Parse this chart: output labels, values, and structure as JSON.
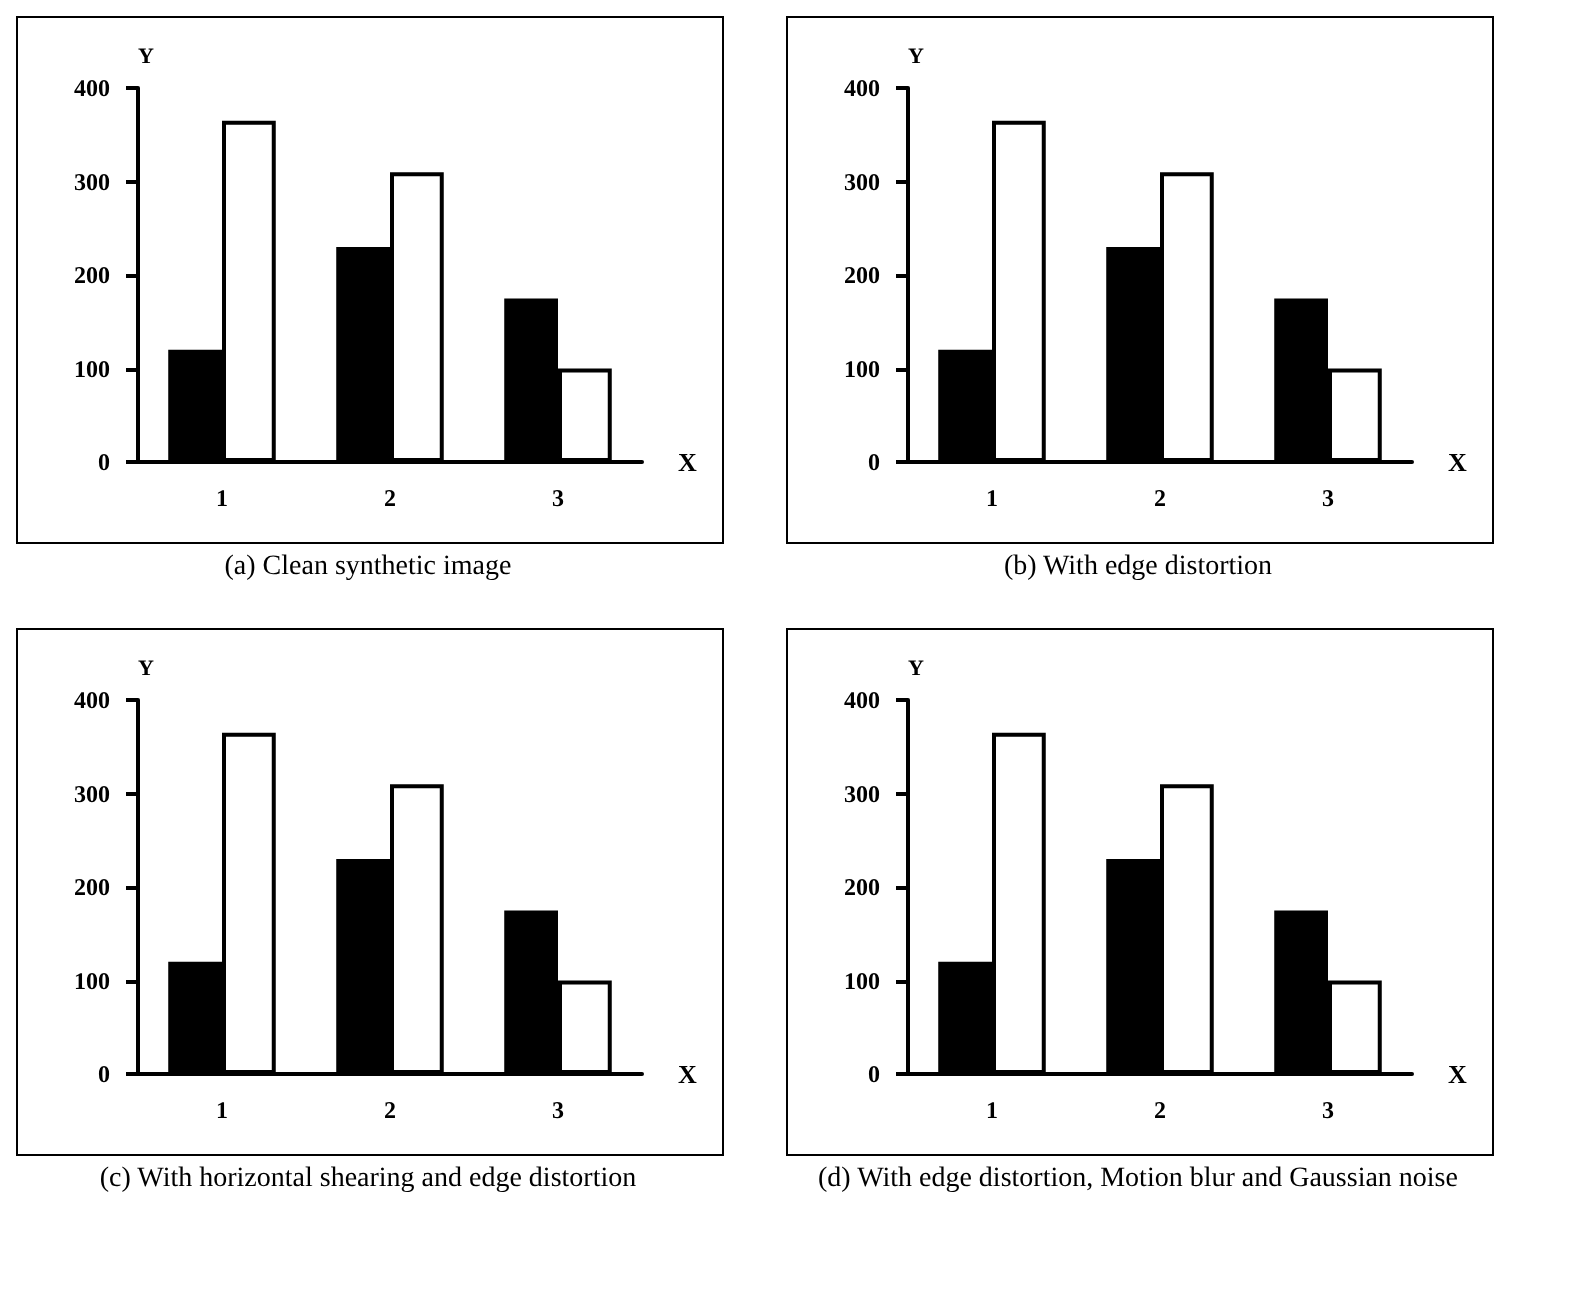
{
  "chart_data": [
    {
      "type": "bar",
      "title": "(a) Clean synthetic image",
      "xlabel": "X",
      "ylabel": "Y",
      "categories": [
        "1",
        "2",
        "3"
      ],
      "ylim": [
        0,
        400
      ],
      "yticks": [
        0,
        100,
        200,
        300,
        400
      ],
      "grid": false,
      "series": [
        {
          "color": "#000000",
          "values": [
            120,
            230,
            175
          ]
        },
        {
          "color": "#ffffff",
          "values": [
            365,
            310,
            100
          ]
        }
      ]
    },
    {
      "type": "bar",
      "title": "(b) With edge distortion",
      "xlabel": "X",
      "ylabel": "Y",
      "categories": [
        "1",
        "2",
        "3"
      ],
      "ylim": [
        0,
        400
      ],
      "yticks": [
        0,
        100,
        200,
        300,
        400
      ],
      "grid": false,
      "series": [
        {
          "color": "#000000",
          "values": [
            120,
            230,
            175
          ]
        },
        {
          "color": "#ffffff",
          "values": [
            365,
            310,
            100
          ]
        }
      ]
    },
    {
      "type": "bar",
      "title": "(c) With horizontal shearing and edge distortion",
      "xlabel": "X",
      "ylabel": "Y",
      "categories": [
        "1",
        "2",
        "3"
      ],
      "ylim": [
        0,
        400
      ],
      "yticks": [
        0,
        100,
        200,
        300,
        400
      ],
      "grid": false,
      "series": [
        {
          "color": "#000000",
          "values": [
            120,
            230,
            175
          ]
        },
        {
          "color": "#ffffff",
          "values": [
            365,
            310,
            100
          ]
        }
      ]
    },
    {
      "type": "bar",
      "title": "(d) With edge distortion, Motion blur and Gaussian noise",
      "xlabel": "X",
      "ylabel": "Y",
      "categories": [
        "1",
        "2",
        "3"
      ],
      "ylim": [
        0,
        400
      ],
      "yticks": [
        0,
        100,
        200,
        300,
        400
      ],
      "grid": false,
      "series": [
        {
          "color": "#000000",
          "values": [
            120,
            230,
            175
          ]
        },
        {
          "color": "#ffffff",
          "values": [
            365,
            310,
            100
          ]
        }
      ]
    }
  ]
}
